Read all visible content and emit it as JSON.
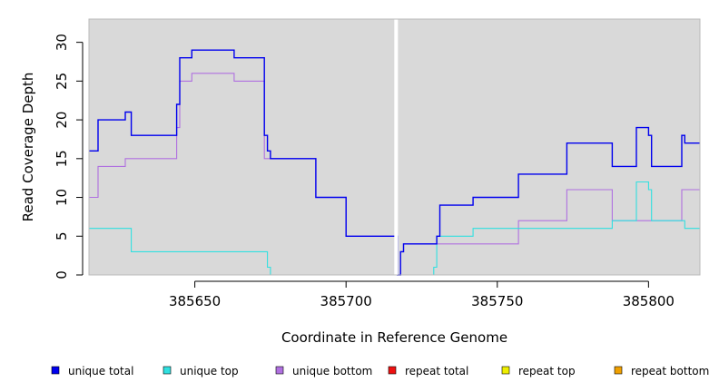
{
  "chart_data": {
    "type": "line",
    "step": true,
    "xlabel": "Coordinate in Reference Genome",
    "ylabel": "Read Coverage Depth",
    "xlim": [
      385615,
      385817
    ],
    "ylim": [
      0,
      33
    ],
    "xticks": [
      385650,
      385700,
      385750,
      385800
    ],
    "yticks": [
      0,
      5,
      10,
      15,
      20,
      25,
      30
    ],
    "grid": false,
    "background": "#d9d9d9",
    "gap_at_x": 385717,
    "legend_position": "bottom",
    "series": [
      {
        "name": "unique total",
        "color": "#0000ee",
        "points": [
          [
            385615,
            16
          ],
          [
            385618,
            20
          ],
          [
            385627,
            21
          ],
          [
            385629,
            18
          ],
          [
            385644,
            22
          ],
          [
            385645,
            28
          ],
          [
            385649,
            29
          ],
          [
            385663,
            28
          ],
          [
            385673,
            18
          ],
          [
            385674,
            16
          ],
          [
            385675,
            15
          ],
          [
            385690,
            10
          ],
          [
            385700,
            5
          ],
          [
            385717,
            0
          ],
          [
            385718,
            3
          ],
          [
            385719,
            4
          ],
          [
            385730,
            5
          ],
          [
            385731,
            9
          ],
          [
            385742,
            10
          ],
          [
            385757,
            13
          ],
          [
            385773,
            17
          ],
          [
            385788,
            14
          ],
          [
            385796,
            19
          ],
          [
            385800,
            18
          ],
          [
            385801,
            14
          ],
          [
            385811,
            18
          ],
          [
            385812,
            17
          ],
          [
            385817,
            17
          ]
        ]
      },
      {
        "name": "unique top",
        "color": "#30e0e0",
        "points": [
          [
            385615,
            6
          ],
          [
            385629,
            3
          ],
          [
            385674,
            1
          ],
          [
            385675,
            0
          ],
          [
            385717,
            0
          ],
          [
            385729,
            1
          ],
          [
            385730,
            5
          ],
          [
            385742,
            6
          ],
          [
            385788,
            7
          ],
          [
            385796,
            12
          ],
          [
            385800,
            11
          ],
          [
            385801,
            7
          ],
          [
            385811,
            7
          ],
          [
            385812,
            6
          ],
          [
            385817,
            6
          ]
        ]
      },
      {
        "name": "unique bottom",
        "color": "#b070e0",
        "points": [
          [
            385615,
            10
          ],
          [
            385618,
            14
          ],
          [
            385627,
            15
          ],
          [
            385644,
            19
          ],
          [
            385645,
            25
          ],
          [
            385649,
            26
          ],
          [
            385663,
            25
          ],
          [
            385673,
            15
          ],
          [
            385690,
            10
          ],
          [
            385700,
            5
          ],
          [
            385717,
            0
          ],
          [
            385718,
            3
          ],
          [
            385719,
            4
          ],
          [
            385757,
            7
          ],
          [
            385773,
            11
          ],
          [
            385788,
            7
          ],
          [
            385811,
            11
          ],
          [
            385817,
            11
          ]
        ]
      },
      {
        "name": "repeat total",
        "color": "#ee1111",
        "points": [
          [
            385615,
            0
          ],
          [
            385817,
            0
          ]
        ]
      },
      {
        "name": "repeat top",
        "color": "#eeee00",
        "points": [
          [
            385615,
            0
          ],
          [
            385817,
            0
          ]
        ]
      },
      {
        "name": "repeat bottom",
        "color": "#f0a000",
        "points": [
          [
            385615,
            0
          ],
          [
            385817,
            0
          ]
        ]
      }
    ]
  }
}
